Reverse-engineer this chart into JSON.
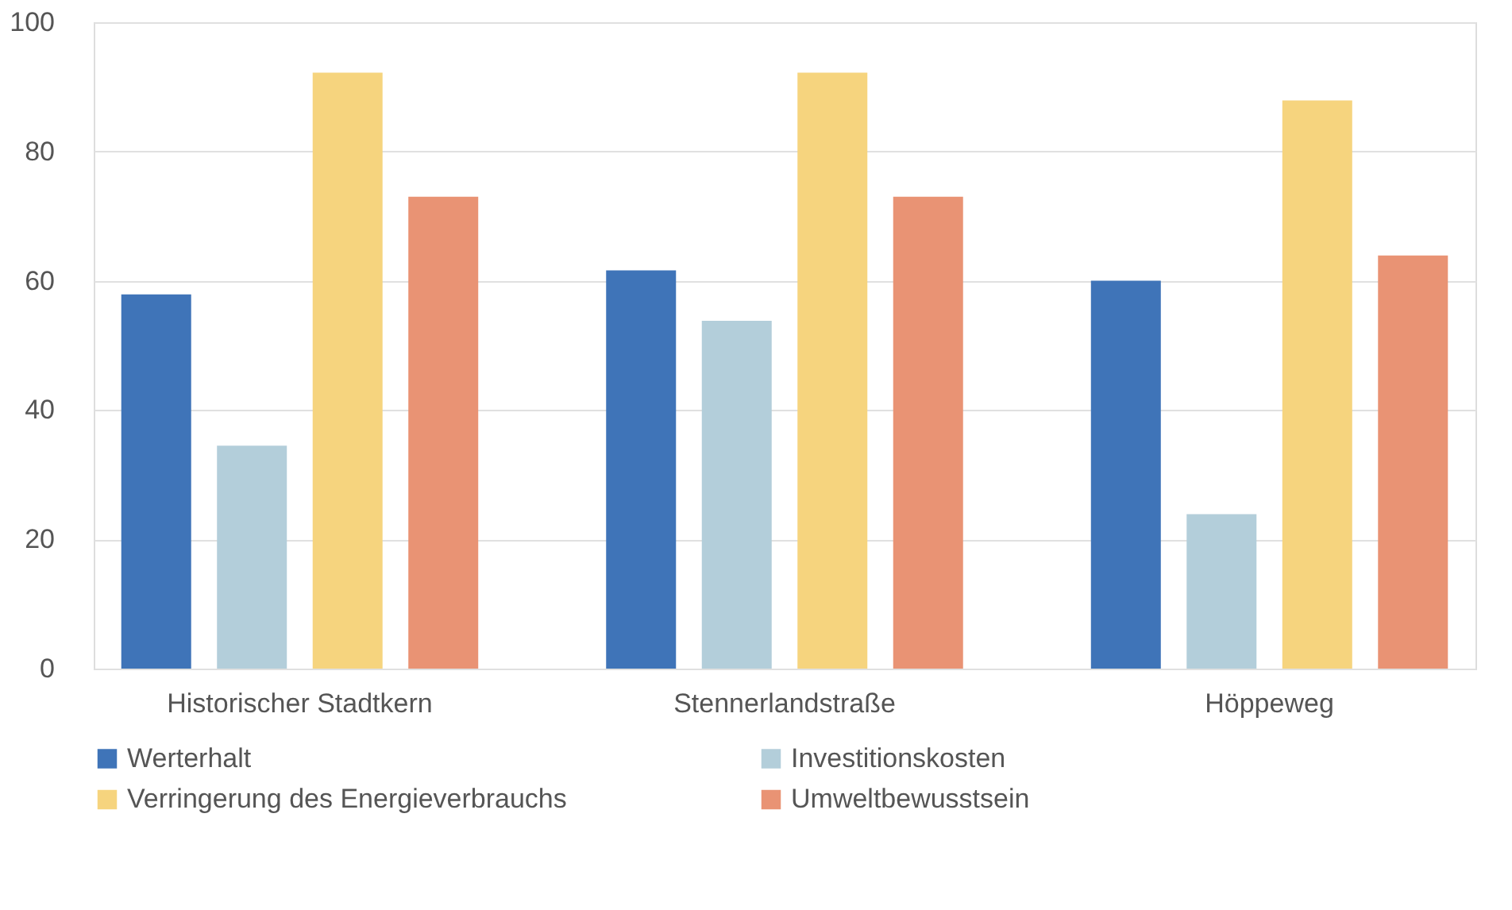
{
  "chart_data": {
    "type": "bar",
    "categories": [
      "Historischer Stadtkern",
      "Stennerlandstraße",
      "Höppeweg"
    ],
    "series": [
      {
        "name": "Werterhalt",
        "color": "#3f74b8",
        "values": [
          57.9,
          61.6,
          60.0
        ]
      },
      {
        "name": "Investitionskosten",
        "color": "#b3ceda",
        "values": [
          34.5,
          53.8,
          23.9
        ]
      },
      {
        "name": "Verringerung des Energieverbrauchs",
        "color": "#f6d47e",
        "values": [
          92.2,
          92.2,
          87.9
        ]
      },
      {
        "name": "Umweltbewusstsein",
        "color": "#e99374",
        "values": [
          73.0,
          73.0,
          63.9
        ]
      }
    ],
    "ylim": [
      0,
      100
    ],
    "yticks": [
      0,
      20,
      40,
      60,
      80,
      100
    ],
    "grid": "y",
    "legend": "bottom"
  }
}
